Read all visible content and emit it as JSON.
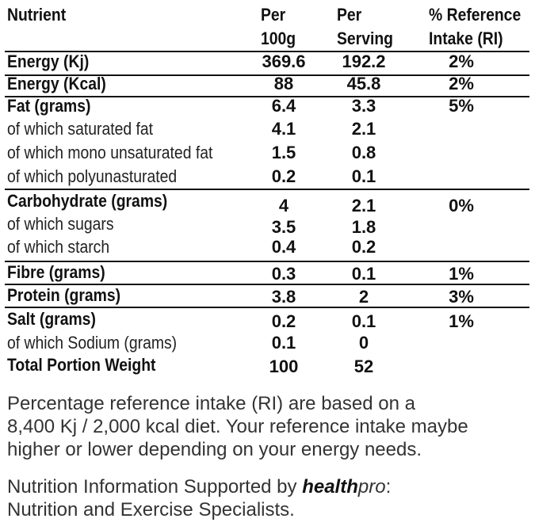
{
  "headers": {
    "nutrient": "Nutrient",
    "per100_line1": "Per",
    "per100_line2": "100g",
    "perserv_line1": "Per",
    "perserv_line2": "Serving",
    "ri_line1": "% Reference",
    "ri_line2": "Intake (RI)"
  },
  "rows": [
    {
      "label": "Energy (Kj)",
      "per100": "369.6",
      "serving": "192.2",
      "ri": "2%"
    },
    {
      "label": "Energy (Kcal)",
      "per100": "88",
      "serving": "45.8",
      "ri": "2%"
    },
    {
      "label": "Fat (grams)",
      "per100": "6.4",
      "serving": "3.3",
      "ri": "5%"
    },
    {
      "label": "of which saturated fat",
      "per100": "4.1",
      "serving": "2.1",
      "ri": ""
    },
    {
      "label": "of which mono unsaturated fat",
      "per100": "1.5",
      "serving": "0.8",
      "ri": ""
    },
    {
      "label": "of which polyunasturated",
      "per100": "0.2",
      "serving": "0.1",
      "ri": ""
    },
    {
      "label": "Carbohydrate (grams)",
      "per100": "4",
      "serving": "2.1",
      "ri": "0%"
    },
    {
      "label": "of which sugars",
      "per100": "3.5",
      "serving": "1.8",
      "ri": ""
    },
    {
      "label": "of which starch",
      "per100": "0.4",
      "serving": "0.2",
      "ri": ""
    },
    {
      "label": "Fibre (grams)",
      "per100": "0.3",
      "serving": "0.1",
      "ri": "1%"
    },
    {
      "label": "Protein (grams)",
      "per100": "3.8",
      "serving": "2",
      "ri": "3%"
    },
    {
      "label": "Salt (grams)",
      "per100": "0.2",
      "serving": "0.1",
      "ri": "1%"
    },
    {
      "label": "of which Sodium (grams)",
      "per100": "0.1",
      "serving": "0",
      "ri": ""
    },
    {
      "label": "Total Portion Weight",
      "per100": "100",
      "serving": "52",
      "ri": ""
    }
  ],
  "note": {
    "line1": "Percentage reference intake (RI) are based on a",
    "line2": "8,400 Kj / 2,000 kcal diet. Your reference intake maybe",
    "line3": "higher or lower depending on your energy needs."
  },
  "credit": {
    "prefix": "Nutrition Information Supported by ",
    "brand_bold": "health",
    "brand_italic": "pro",
    "suffix": ":",
    "line2": "Nutrition and Exercise Specialists."
  }
}
